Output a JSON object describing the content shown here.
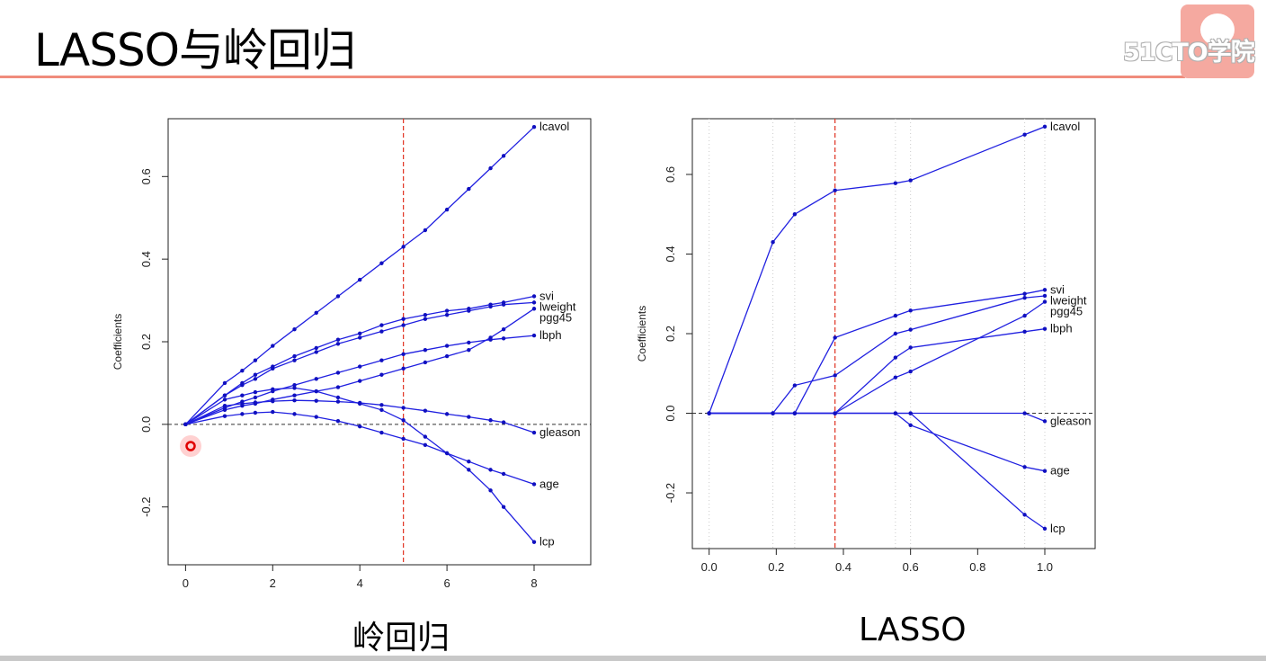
{
  "slide": {
    "title": "LASSO与岭回归",
    "logo_text": "51CTO学院"
  },
  "captions": {
    "left": "岭回归",
    "right": "LASSO"
  },
  "chart_data": [
    {
      "type": "line",
      "xlim": [
        -0.4,
        9.3
      ],
      "ylim": [
        -0.34,
        0.74
      ],
      "xticks": [
        0,
        2,
        4,
        6,
        8
      ],
      "yticks": [
        -0.2,
        0.0,
        0.2,
        0.4,
        0.6
      ],
      "ylabel": "Coefficients",
      "grid": false,
      "vline": 5,
      "hline": 0,
      "x": [
        0,
        0.9,
        1.3,
        1.6,
        2,
        2.5,
        3,
        3.5,
        4,
        4.5,
        5,
        5.5,
        6,
        6.5,
        7,
        7.3,
        8
      ],
      "series": [
        {
          "name": "lcavol",
          "values": [
            0,
            0.1,
            0.13,
            0.155,
            0.19,
            0.23,
            0.27,
            0.31,
            0.35,
            0.39,
            0.43,
            0.47,
            0.52,
            0.57,
            0.62,
            0.65,
            0.72
          ]
        },
        {
          "name": "svi",
          "values": [
            0,
            0.07,
            0.1,
            0.12,
            0.14,
            0.165,
            0.185,
            0.205,
            0.22,
            0.24,
            0.255,
            0.265,
            0.275,
            0.28,
            0.29,
            0.295,
            0.31
          ]
        },
        {
          "name": "lweight",
          "values": [
            0,
            0.07,
            0.095,
            0.11,
            0.135,
            0.155,
            0.175,
            0.195,
            0.21,
            0.225,
            0.24,
            0.255,
            0.265,
            0.275,
            0.285,
            0.29,
            0.295
          ]
        },
        {
          "name": "pgg45",
          "values": [
            0,
            0.035,
            0.045,
            0.05,
            0.06,
            0.07,
            0.08,
            0.09,
            0.105,
            0.12,
            0.135,
            0.15,
            0.165,
            0.18,
            0.21,
            0.23,
            0.28
          ]
        },
        {
          "name": "lbph",
          "values": [
            0,
            0.04,
            0.055,
            0.065,
            0.08,
            0.095,
            0.11,
            0.125,
            0.14,
            0.155,
            0.17,
            0.18,
            0.19,
            0.198,
            0.205,
            0.208,
            0.215
          ]
        },
        {
          "name": "gleason",
          "values": [
            0,
            0.045,
            0.05,
            0.053,
            0.056,
            0.058,
            0.057,
            0.055,
            0.052,
            0.047,
            0.04,
            0.033,
            0.025,
            0.018,
            0.01,
            0.005,
            -0.02
          ]
        },
        {
          "name": "age",
          "values": [
            0,
            0.02,
            0.025,
            0.028,
            0.03,
            0.025,
            0.018,
            0.008,
            -0.005,
            -0.02,
            -0.035,
            -0.05,
            -0.07,
            -0.09,
            -0.11,
            -0.12,
            -0.145
          ]
        },
        {
          "name": "lcp",
          "values": [
            0,
            0.06,
            0.07,
            0.078,
            0.085,
            0.088,
            0.08,
            0.065,
            0.05,
            0.035,
            0.01,
            -0.03,
            -0.07,
            -0.11,
            -0.16,
            -0.2,
            -0.285
          ]
        }
      ]
    },
    {
      "type": "line",
      "xlim": [
        -0.05,
        1.15
      ],
      "ylim": [
        -0.34,
        0.74
      ],
      "xticks": [
        0.0,
        0.2,
        0.4,
        0.6,
        0.8,
        1.0
      ],
      "yticks": [
        -0.2,
        0.0,
        0.2,
        0.4,
        0.6
      ],
      "ylabel": "Coefficients",
      "grid": false,
      "vline": 0.375,
      "hline": 0,
      "knots": [
        0,
        0.19,
        0.255,
        0.375,
        0.555,
        0.6,
        0.94,
        1.0
      ],
      "x": [
        0,
        0.19,
        0.255,
        0.375,
        0.555,
        0.6,
        0.94,
        1.0
      ],
      "series": [
        {
          "name": "lcavol",
          "values": [
            0,
            0.43,
            0.5,
            0.56,
            0.578,
            0.585,
            0.7,
            0.72
          ]
        },
        {
          "name": "svi",
          "values": [
            0,
            0,
            0,
            0.19,
            0.245,
            0.258,
            0.3,
            0.31
          ]
        },
        {
          "name": "lweight",
          "values": [
            0,
            0,
            0.07,
            0.095,
            0.2,
            0.21,
            0.29,
            0.295
          ]
        },
        {
          "name": "pgg45",
          "values": [
            0,
            0,
            0,
            0,
            0.09,
            0.105,
            0.245,
            0.28
          ]
        },
        {
          "name": "lbph",
          "values": [
            0,
            0,
            0,
            0,
            0.14,
            0.165,
            0.205,
            0.212
          ]
        },
        {
          "name": "gleason",
          "values": [
            0,
            0,
            0,
            0,
            0,
            0,
            0,
            -0.02
          ]
        },
        {
          "name": "age",
          "values": [
            0,
            0,
            0,
            0,
            0,
            -0.03,
            -0.135,
            -0.145
          ]
        },
        {
          "name": "lcp",
          "values": [
            0,
            0,
            0,
            0,
            0,
            0,
            -0.255,
            -0.29
          ]
        }
      ]
    }
  ],
  "colors": {
    "series": "#2020e0",
    "marker": "#1010c0",
    "vline": "#e03020",
    "hline": "#333333",
    "underline": "#f08c7c"
  }
}
